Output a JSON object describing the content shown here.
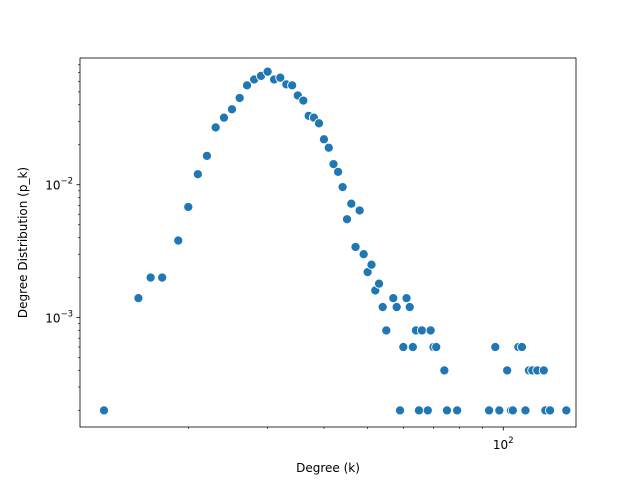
{
  "chart_data": {
    "type": "scatter",
    "xlabel": "Degree (k)",
    "ylabel": "Degree Distribution (p_k)",
    "xscale": "log",
    "yscale": "log",
    "xlim": [
      11.5,
      145
    ],
    "ylim": [
      0.00015,
      0.09
    ],
    "x_ticks": [
      {
        "value": 100,
        "base": "10",
        "exp": "2"
      }
    ],
    "y_ticks": [
      {
        "value": 0.001,
        "base": "10",
        "exp": "−3"
      },
      {
        "value": 0.01,
        "base": "10",
        "exp": "−2"
      }
    ],
    "grid": false,
    "marker_color": "#1f77b4",
    "points": [
      [
        13,
        0.0002
      ],
      [
        15.5,
        0.0014
      ],
      [
        16.5,
        0.002
      ],
      [
        17.5,
        0.002
      ],
      [
        19,
        0.0038
      ],
      [
        20,
        0.0068
      ],
      [
        21,
        0.012
      ],
      [
        22,
        0.0165
      ],
      [
        23,
        0.027
      ],
      [
        24,
        0.032
      ],
      [
        25,
        0.037
      ],
      [
        26,
        0.045
      ],
      [
        27,
        0.056
      ],
      [
        28,
        0.062
      ],
      [
        29,
        0.066
      ],
      [
        30,
        0.071
      ],
      [
        31,
        0.062
      ],
      [
        32,
        0.064
      ],
      [
        33,
        0.057
      ],
      [
        34,
        0.056
      ],
      [
        35,
        0.047
      ],
      [
        36,
        0.043
      ],
      [
        37,
        0.033
      ],
      [
        38,
        0.032
      ],
      [
        39,
        0.029
      ],
      [
        40,
        0.022
      ],
      [
        41,
        0.019
      ],
      [
        42,
        0.0143
      ],
      [
        43,
        0.0125
      ],
      [
        44,
        0.0096
      ],
      [
        45,
        0.0055
      ],
      [
        46,
        0.0072
      ],
      [
        47,
        0.0034
      ],
      [
        48,
        0.0064
      ],
      [
        49,
        0.003
      ],
      [
        50,
        0.0022
      ],
      [
        51,
        0.0025
      ],
      [
        52,
        0.0016
      ],
      [
        53,
        0.0018
      ],
      [
        54,
        0.0012
      ],
      [
        55,
        0.0008
      ],
      [
        57,
        0.0014
      ],
      [
        58,
        0.0012
      ],
      [
        59,
        0.0002
      ],
      [
        60,
        0.0006
      ],
      [
        61,
        0.0014
      ],
      [
        62,
        0.0012
      ],
      [
        63,
        0.0006
      ],
      [
        64,
        0.0008
      ],
      [
        65,
        0.0002
      ],
      [
        66,
        0.0008
      ],
      [
        68,
        0.0002
      ],
      [
        69,
        0.0008
      ],
      [
        70,
        0.0006
      ],
      [
        71,
        0.0006
      ],
      [
        74,
        0.0004
      ],
      [
        75,
        0.0002
      ],
      [
        79,
        0.0002
      ],
      [
        93,
        0.0002
      ],
      [
        96,
        0.0006
      ],
      [
        98,
        0.0002
      ],
      [
        102,
        0.0004
      ],
      [
        104,
        0.0002
      ],
      [
        105,
        0.0002
      ],
      [
        108,
        0.0006
      ],
      [
        110,
        0.0006
      ],
      [
        112,
        0.0002
      ],
      [
        114,
        0.0004
      ],
      [
        116,
        0.0004
      ],
      [
        119,
        0.0004
      ],
      [
        123,
        0.0004
      ],
      [
        124,
        0.0002
      ],
      [
        127,
        0.0002
      ],
      [
        138,
        0.0002
      ]
    ]
  }
}
